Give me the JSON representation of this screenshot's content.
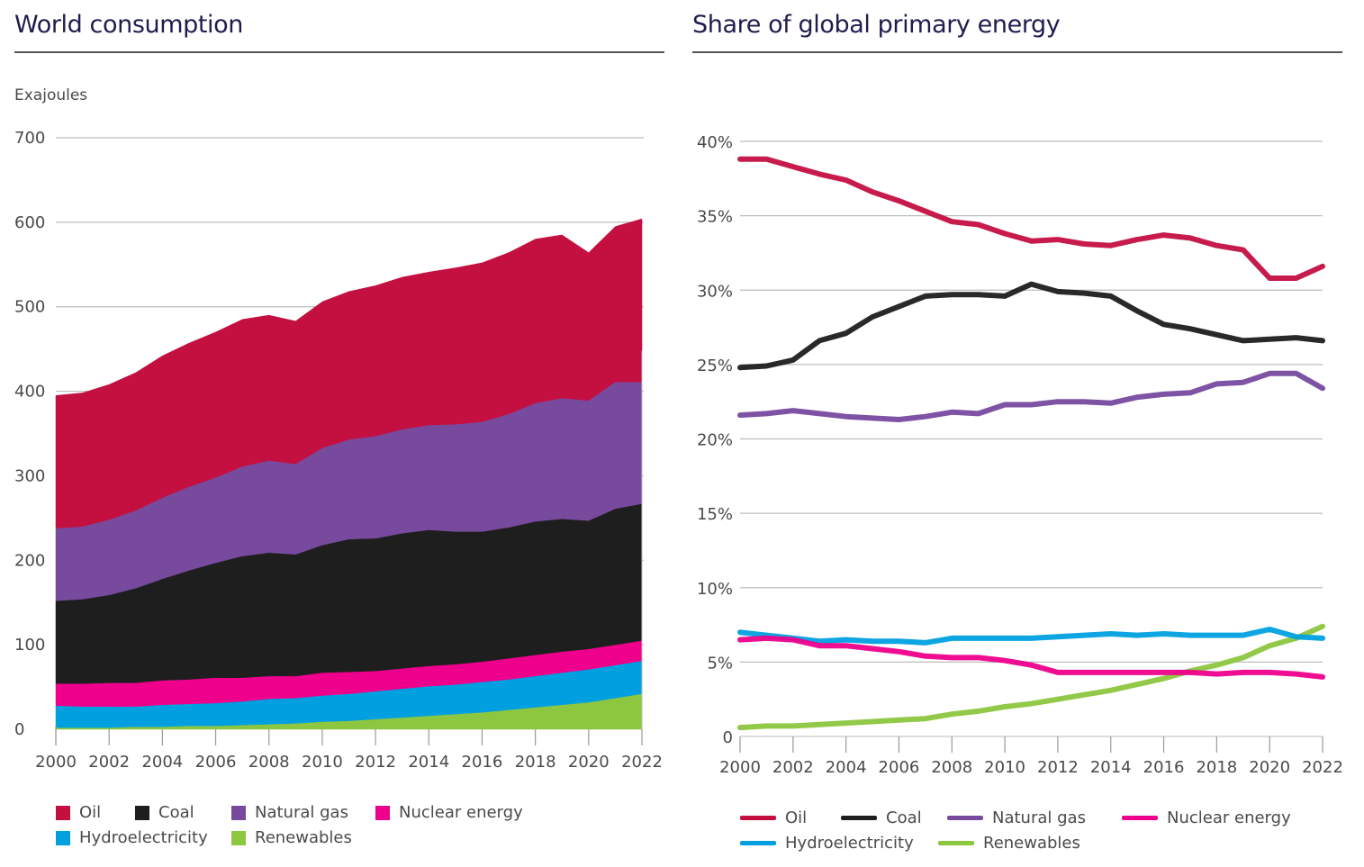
{
  "chart_data": [
    {
      "type": "area",
      "stacked": true,
      "title": "World consumption",
      "xlabel": "",
      "ylabel": "Exajoules",
      "ylim": [
        0,
        700
      ],
      "yticks": [
        0,
        100,
        200,
        300,
        400,
        500,
        600,
        700
      ],
      "ytick_labels": [
        "0",
        "100",
        "200",
        "300",
        "400",
        "500",
        "600",
        "700"
      ],
      "xlim": [
        2000,
        2022
      ],
      "xticks": [
        2000,
        2002,
        2004,
        2006,
        2008,
        2010,
        2012,
        2014,
        2016,
        2018,
        2020,
        2022
      ],
      "xtick_labels": [
        "2000",
        "2002",
        "2004",
        "2006",
        "2008",
        "2010",
        "2012",
        "2014",
        "2016",
        "2018",
        "2020",
        "2022"
      ],
      "grid": "horizontal",
      "legend_position": "bottom",
      "x": [
        2000,
        2001,
        2002,
        2003,
        2004,
        2005,
        2006,
        2007,
        2008,
        2009,
        2010,
        2011,
        2012,
        2013,
        2014,
        2015,
        2016,
        2017,
        2018,
        2019,
        2020,
        2021,
        2022
      ],
      "series": [
        {
          "name": "Renewables",
          "color": "#8dc63f",
          "values": [
            2,
            2,
            2,
            3,
            3,
            4,
            4,
            5,
            6,
            7,
            9,
            10,
            12,
            14,
            16,
            18,
            20,
            23,
            26,
            29,
            32,
            37,
            42
          ]
        },
        {
          "name": "Hydroelectricity",
          "color": "#00a0e0",
          "values": [
            26,
            25,
            25,
            24,
            26,
            26,
            27,
            28,
            30,
            30,
            31,
            32,
            33,
            34,
            35,
            35,
            36,
            36,
            37,
            38,
            39,
            39,
            39
          ]
        },
        {
          "name": "Nuclear energy",
          "color": "#ee008c",
          "values": [
            26,
            27,
            28,
            28,
            29,
            29,
            30,
            28,
            27,
            26,
            27,
            26,
            24,
            24,
            24,
            24,
            24,
            25,
            25,
            25,
            24,
            24,
            24
          ]
        },
        {
          "name": "Coal",
          "color": "#1e1e1e",
          "values": [
            98,
            100,
            104,
            112,
            120,
            129,
            136,
            144,
            146,
            144,
            151,
            157,
            157,
            160,
            161,
            157,
            154,
            155,
            158,
            157,
            152,
            161,
            162
          ]
        },
        {
          "name": "Natural gas",
          "color": "#774a9e",
          "values": [
            86,
            86,
            89,
            92,
            96,
            99,
            101,
            106,
            109,
            107,
            115,
            118,
            121,
            123,
            124,
            127,
            130,
            134,
            140,
            143,
            142,
            150,
            144
          ]
        },
        {
          "name": "Oil",
          "color": "#c40f41",
          "values": [
            157,
            158,
            160,
            163,
            168,
            170,
            172,
            174,
            172,
            169,
            173,
            175,
            178,
            180,
            181,
            185,
            188,
            191,
            194,
            193,
            175,
            184,
            193
          ]
        }
      ],
      "legend": [
        {
          "name": "Oil",
          "color": "#c40f41"
        },
        {
          "name": "Coal",
          "color": "#1e1e1e"
        },
        {
          "name": "Natural gas",
          "color": "#774a9e"
        },
        {
          "name": "Nuclear energy",
          "color": "#ee008c"
        },
        {
          "name": "Hydroelectricity",
          "color": "#00a0e0"
        },
        {
          "name": "Renewables",
          "color": "#8dc63f"
        }
      ]
    },
    {
      "type": "line",
      "title": "Share of global primary energy",
      "xlabel": "",
      "ylabel": "",
      "ylim": [
        0,
        40
      ],
      "yticks": [
        0,
        5,
        10,
        15,
        20,
        25,
        30,
        35,
        40
      ],
      "ytick_labels": [
        "0",
        "5%",
        "10%",
        "15%",
        "20%",
        "25%",
        "30%",
        "35%",
        "40%"
      ],
      "xlim": [
        2000,
        2022
      ],
      "xticks": [
        2000,
        2002,
        2004,
        2006,
        2008,
        2010,
        2012,
        2014,
        2016,
        2018,
        2020,
        2022
      ],
      "xtick_labels": [
        "2000",
        "2002",
        "2004",
        "2006",
        "2008",
        "2010",
        "2012",
        "2014",
        "2016",
        "2018",
        "2020",
        "2022"
      ],
      "grid": "horizontal",
      "legend_position": "bottom",
      "unit": "%",
      "x": [
        2000,
        2001,
        2002,
        2003,
        2004,
        2005,
        2006,
        2007,
        2008,
        2009,
        2010,
        2011,
        2012,
        2013,
        2014,
        2015,
        2016,
        2017,
        2018,
        2019,
        2020,
        2021,
        2022
      ],
      "series": [
        {
          "name": "Oil",
          "color": "#c40f41",
          "values": [
            38.8,
            38.8,
            38.3,
            37.8,
            37.4,
            36.6,
            36.0,
            35.3,
            34.6,
            34.4,
            33.8,
            33.3,
            33.4,
            33.1,
            33.0,
            33.4,
            33.7,
            33.5,
            33.0,
            32.7,
            30.8,
            30.8,
            31.6
          ]
        },
        {
          "name": "Coal",
          "color": "#1e1e1e",
          "values": [
            24.8,
            24.9,
            25.3,
            26.6,
            27.1,
            28.2,
            28.9,
            29.6,
            29.7,
            29.7,
            29.6,
            30.4,
            29.9,
            29.8,
            29.6,
            28.6,
            27.7,
            27.4,
            27.0,
            26.6,
            26.7,
            26.8,
            26.6
          ]
        },
        {
          "name": "Natural gas",
          "color": "#774a9e",
          "values": [
            21.6,
            21.7,
            21.9,
            21.7,
            21.5,
            21.4,
            21.3,
            21.5,
            21.8,
            21.7,
            22.3,
            22.3,
            22.5,
            22.5,
            22.4,
            22.8,
            23.0,
            23.1,
            23.7,
            23.8,
            24.4,
            24.4,
            23.4
          ]
        },
        {
          "name": "Nuclear energy",
          "color": "#ee008c",
          "values": [
            6.5,
            6.6,
            6.5,
            6.1,
            6.1,
            5.9,
            5.7,
            5.4,
            5.3,
            5.3,
            5.1,
            4.8,
            4.3,
            4.3,
            4.3,
            4.3,
            4.3,
            4.3,
            4.2,
            4.3,
            4.3,
            4.2,
            4.0
          ]
        },
        {
          "name": "Hydroelectricity",
          "color": "#00a0e0",
          "values": [
            7.0,
            6.8,
            6.6,
            6.4,
            6.5,
            6.4,
            6.4,
            6.3,
            6.6,
            6.6,
            6.6,
            6.6,
            6.7,
            6.8,
            6.9,
            6.8,
            6.9,
            6.8,
            6.8,
            6.8,
            7.2,
            6.7,
            6.6
          ]
        },
        {
          "name": "Renewables",
          "color": "#8dc63f",
          "values": [
            0.6,
            0.7,
            0.7,
            0.8,
            0.9,
            1.0,
            1.1,
            1.2,
            1.5,
            1.7,
            2.0,
            2.2,
            2.5,
            2.8,
            3.1,
            3.5,
            3.9,
            4.4,
            4.8,
            5.3,
            6.1,
            6.6,
            7.4
          ]
        }
      ],
      "legend": [
        {
          "name": "Oil",
          "color": "#c40f41"
        },
        {
          "name": "Coal",
          "color": "#1e1e1e"
        },
        {
          "name": "Natural gas",
          "color": "#774a9e"
        },
        {
          "name": "Nuclear energy",
          "color": "#ee008c"
        },
        {
          "name": "Hydroelectricity",
          "color": "#00a0e0"
        },
        {
          "name": "Renewables",
          "color": "#8dc63f"
        }
      ]
    }
  ]
}
